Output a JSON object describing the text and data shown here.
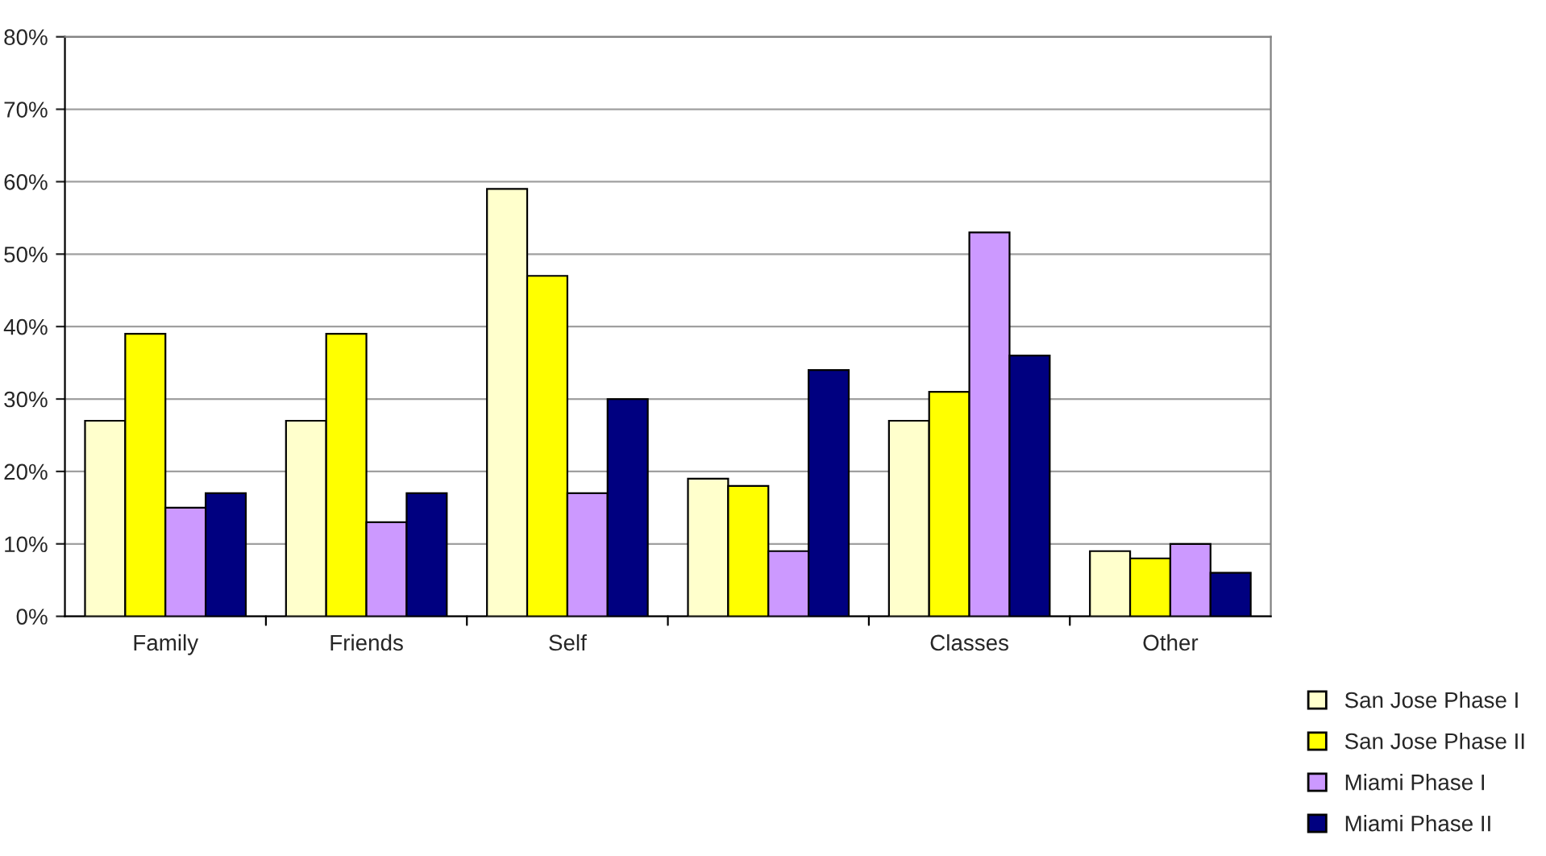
{
  "chart_data": {
    "type": "bar",
    "categories": [
      "Family",
      "Friends",
      "Self",
      null,
      "Classes",
      "Other"
    ],
    "series": [
      {
        "name": "San Jose Phase I",
        "color": "#ffffcc",
        "values": [
          27,
          27,
          59,
          19,
          27,
          9
        ]
      },
      {
        "name": "San Jose Phase II",
        "color": "#ffff00",
        "values": [
          39,
          39,
          47,
          18,
          31,
          8
        ]
      },
      {
        "name": "Miami Phase I",
        "color": "#cc99ff",
        "values": [
          15,
          13,
          17,
          9,
          53,
          10
        ]
      },
      {
        "name": "Miami Phase II",
        "color": "#000080",
        "values": [
          17,
          17,
          30,
          34,
          36,
          6
        ]
      }
    ],
    "ylim": [
      0,
      80
    ],
    "yticks": [
      {
        "value": 0,
        "label": "0%"
      },
      {
        "value": 10,
        "label": "10%"
      },
      {
        "value": 20,
        "label": "20%"
      },
      {
        "value": 30,
        "label": "30%"
      },
      {
        "value": 40,
        "label": "40%"
      },
      {
        "value": 50,
        "label": "50%"
      },
      {
        "value": 60,
        "label": "60%"
      },
      {
        "value": 70,
        "label": "70%"
      },
      {
        "value": 80,
        "label": "80%"
      }
    ],
    "grid": "y",
    "legend": "bottom right"
  }
}
